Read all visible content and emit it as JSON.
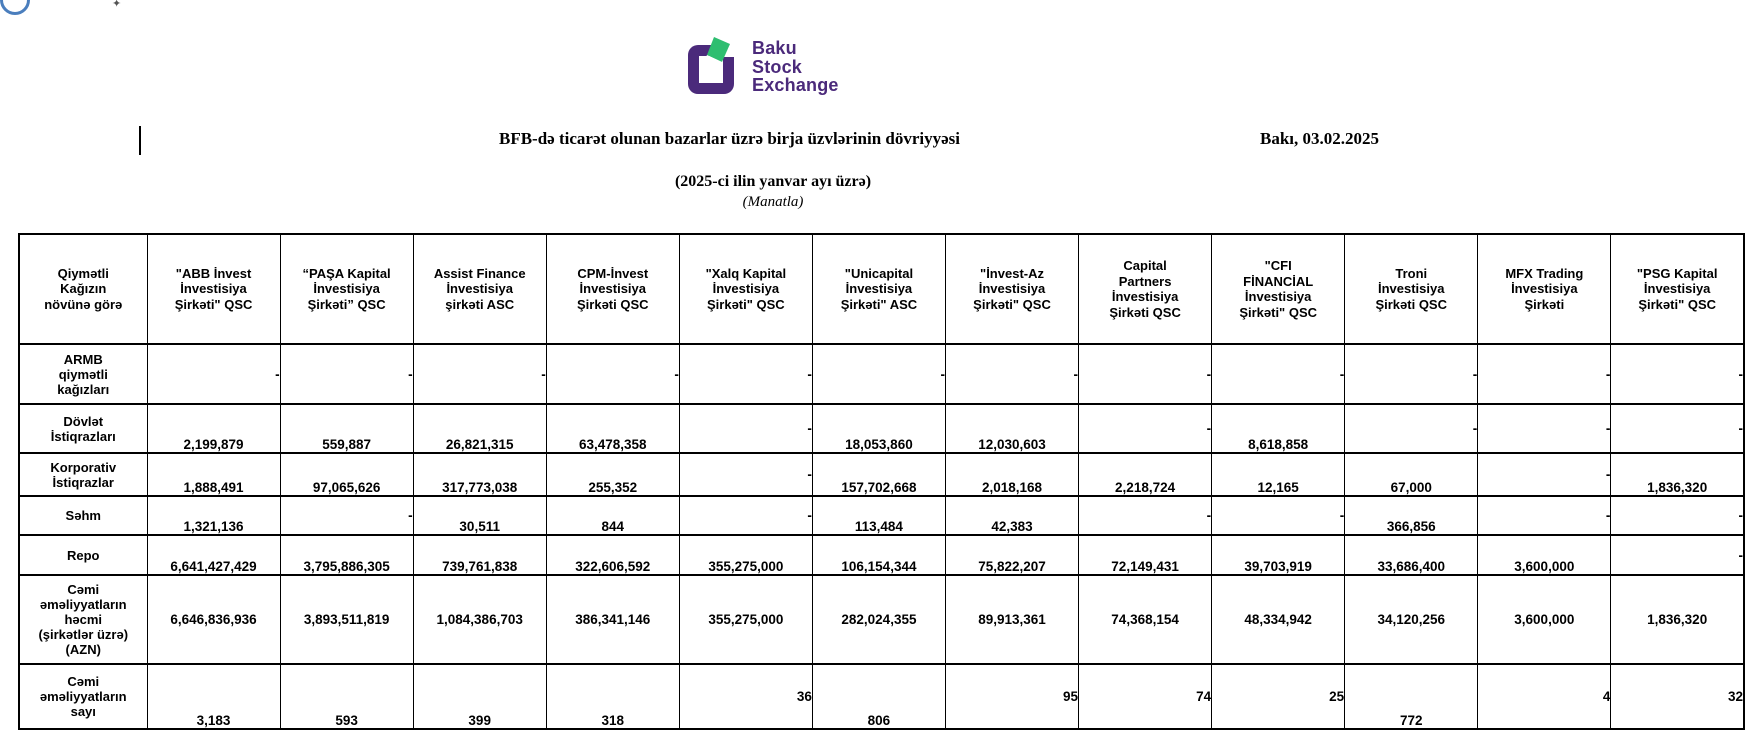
{
  "page": {
    "title": "BFB-də ticarət olunan bazarlar üzrə birja üzvlərinin dövriyyəsi",
    "date_label": "Bakı, 03.02.2025",
    "subtitle": "(2025-ci ilin yanvar ayı üzrə)",
    "unit_note": "(Manatla)",
    "sparkle_glyph": "✦"
  },
  "logo": {
    "line1": "Baku",
    "line2": "Stock",
    "line3": "Exchange",
    "purple": "#4b2a7b",
    "green": "#2ebe70"
  },
  "table": {
    "corner_header": "Qiymətli\nKağızın\nnövünə görə",
    "columns": [
      "\"ABB İnvest\nİnvestisiya\nŞirkəti\" QSC",
      "“PAŞA Kapital\nİnvestisiya\nŞirkəti” QSC",
      "Assist Finance\nİnvestisiya\nşirkəti ASC",
      "CPM-İnvest\nİnvestisiya\nŞirkəti QSC",
      "\"Xalq Kapital\nİnvestisiya\nŞirkəti\" QSC",
      "\"Unicapital\nİnvestisiya\nŞirkəti\" ASC",
      "\"İnvest-Az\nİnvestisiya\nŞirkəti\" QSC",
      "Capital\nPartners\nİnvestisiya\nŞirkəti QSC",
      "\"CFI\nFİNANCİAL\nİnvestisiya\nŞirkəti\" QSC",
      "Troni\nİnvestisiya\nŞirkəti QSC",
      "MFX Trading\nİnvestisiya\nŞirkəti",
      "\"PSG Kapital\nİnvestisiya\nŞirkəti\" QSC"
    ],
    "rows": [
      {
        "label": "ARMB\nqiymətli\nkağızları",
        "cells": [
          {
            "v": "-",
            "r": true
          },
          {
            "v": "-",
            "r": true
          },
          {
            "v": "-",
            "r": true
          },
          {
            "v": "-",
            "r": true
          },
          {
            "v": "-",
            "r": true
          },
          {
            "v": "-",
            "r": true
          },
          {
            "v": "-",
            "r": true
          },
          {
            "v": "-",
            "r": true
          },
          {
            "v": "-",
            "r": true
          },
          {
            "v": "-",
            "r": true
          },
          {
            "v": "-",
            "r": true
          },
          {
            "v": "-",
            "r": true
          }
        ]
      },
      {
        "label": "Dövlət\nİstiqrazları",
        "cells": [
          {
            "v": "2,199,879"
          },
          {
            "v": "559,887"
          },
          {
            "v": "26,821,315"
          },
          {
            "v": "63,478,358"
          },
          {
            "v": "-",
            "r": true
          },
          {
            "v": "18,053,860"
          },
          {
            "v": "12,030,603"
          },
          {
            "v": "-",
            "r": true
          },
          {
            "v": "8,618,858"
          },
          {
            "v": "-",
            "r": true
          },
          {
            "v": "-",
            "r": true
          },
          {
            "v": "-",
            "r": true
          }
        ]
      },
      {
        "label": "Korporativ\nİstiqrazlar",
        "cells": [
          {
            "v": "1,888,491"
          },
          {
            "v": "97,065,626"
          },
          {
            "v": "317,773,038"
          },
          {
            "v": "255,352"
          },
          {
            "v": "-",
            "r": true
          },
          {
            "v": "157,702,668"
          },
          {
            "v": "2,018,168"
          },
          {
            "v": "2,218,724"
          },
          {
            "v": "12,165"
          },
          {
            "v": "67,000"
          },
          {
            "v": "-",
            "r": true
          },
          {
            "v": "1,836,320"
          }
        ]
      },
      {
        "label": "Səhm",
        "cells": [
          {
            "v": "1,321,136"
          },
          {
            "v": "-",
            "r": true
          },
          {
            "v": "30,511"
          },
          {
            "v": "844"
          },
          {
            "v": "-",
            "r": true
          },
          {
            "v": "113,484"
          },
          {
            "v": "42,383"
          },
          {
            "v": "-",
            "r": true
          },
          {
            "v": "-",
            "r": true
          },
          {
            "v": "366,856"
          },
          {
            "v": "-",
            "r": true
          },
          {
            "v": "-",
            "r": true
          }
        ]
      },
      {
        "label": "Repo",
        "cells": [
          {
            "v": "6,641,427,429"
          },
          {
            "v": "3,795,886,305"
          },
          {
            "v": "739,761,838"
          },
          {
            "v": "322,606,592"
          },
          {
            "v": "355,275,000"
          },
          {
            "v": "106,154,344"
          },
          {
            "v": "75,822,207"
          },
          {
            "v": "72,149,431"
          },
          {
            "v": "39,703,919"
          },
          {
            "v": "33,686,400"
          },
          {
            "v": "3,600,000"
          },
          {
            "v": "-",
            "r": true
          }
        ]
      },
      {
        "label": "Cəmi\nəməliyyatların\nhəcmi\n(şirkətlər üzrə)\n(AZN)",
        "valign": "middle",
        "cells": [
          {
            "v": "6,646,836,936"
          },
          {
            "v": "3,893,511,819"
          },
          {
            "v": "1,084,386,703"
          },
          {
            "v": "386,341,146"
          },
          {
            "v": "355,275,000"
          },
          {
            "v": "282,024,355"
          },
          {
            "v": "89,913,361"
          },
          {
            "v": "74,368,154"
          },
          {
            "v": "48,334,942"
          },
          {
            "v": "34,120,256"
          },
          {
            "v": "3,600,000"
          },
          {
            "v": "1,836,320"
          }
        ]
      },
      {
        "label": "Cəmi\nəməliyyatların\nsayı",
        "cells": [
          {
            "v": "3,183"
          },
          {
            "v": "593"
          },
          {
            "v": "399"
          },
          {
            "v": "318"
          },
          {
            "v": "36",
            "r": true
          },
          {
            "v": "806"
          },
          {
            "v": "95",
            "r": true
          },
          {
            "v": "74",
            "r": true
          },
          {
            "v": "25",
            "r": true
          },
          {
            "v": "772"
          },
          {
            "v": "4",
            "r": true
          },
          {
            "v": "32",
            "r": true
          }
        ]
      }
    ]
  }
}
